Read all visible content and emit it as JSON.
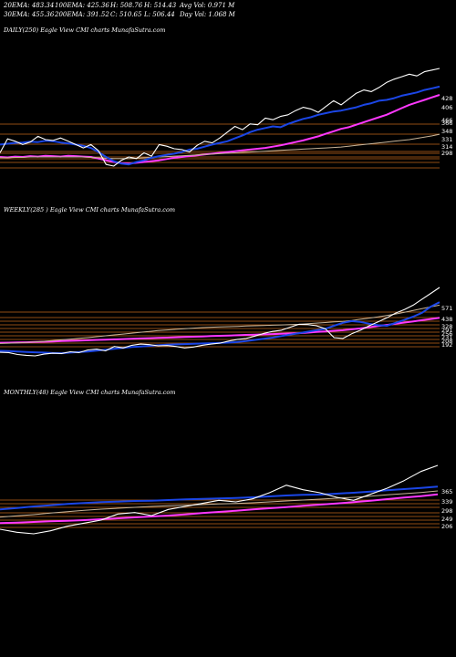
{
  "stats": {
    "ema20": "20EMA: 483.34",
    "ema100": "100EMA: 425.36",
    "high": "H: 508.76",
    "high_v": "H: 514.43",
    "avg_vol": "Avg Vol: 0.971 M",
    "ema30": "30EMA: 455.36",
    "ema200": "200EMA: 391.52",
    "close": "C: 510.65",
    "low": "L: 506.44",
    "day_vol": "Day Vol: 1.068 M"
  },
  "colors": {
    "price": "#ffffff",
    "ema_fast": "#1b46e6",
    "ema_slow": "#ff38ff",
    "ema_mid1": "#c8b59a",
    "ema_mid2": "#d08a3b",
    "hline": "#c2671c"
  },
  "chart_data": [
    {
      "type": "line",
      "title": "DAILY(250) Eagle View CMI charts MunafaSutra.com",
      "ylabels": [
        "466",
        "428",
        "406",
        "366",
        "348",
        "331",
        "314",
        "298"
      ],
      "series": [
        {
          "values": [
            300,
            299,
            301,
            300,
            302,
            301,
            303,
            302,
            301,
            303,
            302,
            301,
            300,
            296,
            292,
            288,
            285,
            284,
            286,
            288,
            290,
            292,
            295,
            298,
            300,
            302,
            304,
            306,
            308,
            310,
            312,
            314,
            316,
            318,
            320,
            322,
            325,
            328,
            332,
            336,
            340,
            345,
            350,
            356,
            362,
            368,
            372,
            378,
            384,
            390,
            396,
            402,
            410,
            418,
            426,
            432,
            438,
            444,
            450
          ]
        },
        {
          "values": [
            298,
            298,
            299,
            299,
            300,
            300,
            300,
            300,
            300,
            300,
            300,
            300,
            299,
            298,
            297,
            296,
            296,
            296,
            297,
            298,
            299,
            300,
            301,
            302,
            303,
            304,
            305,
            306,
            307,
            308,
            309,
            310,
            311,
            312,
            313,
            314,
            315,
            316,
            317,
            318,
            319,
            320,
            321,
            322,
            323,
            324,
            326,
            328,
            330,
            332,
            334,
            336,
            338,
            340,
            342,
            345,
            348,
            351,
            355
          ]
        },
        {
          "values": [
            330,
            332,
            334,
            335,
            337,
            336,
            339,
            338,
            335,
            333,
            330,
            327,
            322,
            312,
            300,
            290,
            284,
            282,
            288,
            292,
            298,
            302,
            305,
            308,
            312,
            318,
            320,
            325,
            330,
            334,
            338,
            345,
            352,
            360,
            366,
            370,
            374,
            372,
            380,
            386,
            392,
            396,
            402,
            406,
            410,
            412,
            416,
            420,
            426,
            430,
            436,
            438,
            442,
            448,
            452,
            456,
            462,
            466,
            470
          ]
        },
        {
          "values": [
            310,
            344,
            338,
            330,
            336,
            350,
            342,
            340,
            346,
            338,
            330,
            322,
            330,
            315,
            282,
            278,
            292,
            300,
            296,
            310,
            302,
            330,
            326,
            320,
            318,
            312,
            328,
            338,
            334,
            346,
            360,
            374,
            366,
            380,
            378,
            394,
            390,
            398,
            402,
            412,
            420,
            416,
            408,
            422,
            436,
            426,
            440,
            454,
            462,
            458,
            468,
            480,
            488,
            494,
            500,
            496,
            506,
            510,
            514
          ]
        }
      ]
    },
    {
      "type": "line",
      "title": "WEEKLY(285 ) Eagle View CMI charts MunafaSutra.com",
      "ylabels": [
        "571",
        "438",
        "328",
        "291",
        "256",
        "231",
        "208",
        "192"
      ],
      "series": [
        {
          "values": [
            185,
            186,
            187,
            188,
            190,
            192,
            194,
            196,
            198,
            200,
            202,
            204,
            206,
            208,
            210,
            212,
            214,
            216,
            218,
            220,
            222,
            224,
            226,
            228,
            230,
            232,
            234,
            236,
            238,
            240,
            242,
            244,
            246,
            248,
            250,
            254,
            258,
            262,
            266,
            270,
            276,
            282,
            290,
            298,
            306,
            314,
            322,
            330,
            338,
            346,
            354
          ]
        },
        {
          "values": [
            180,
            182,
            184,
            187,
            190,
            195,
            200,
            205,
            210,
            215,
            220,
            226,
            232,
            238,
            244,
            250,
            256,
            262,
            268,
            272,
            276,
            280,
            284,
            288,
            290,
            292,
            294,
            296,
            298,
            300,
            302,
            304,
            306,
            308,
            310,
            314,
            318,
            322,
            326,
            330,
            336,
            344,
            352,
            360,
            370,
            380,
            392,
            404,
            416,
            428,
            440
          ]
        },
        {
          "values": [
            130,
            128,
            125,
            122,
            120,
            118,
            115,
            114,
            118,
            122,
            126,
            132,
            138,
            144,
            150,
            156,
            160,
            164,
            168,
            172,
            174,
            176,
            178,
            180,
            182,
            184,
            186,
            190,
            196,
            204,
            212,
            220,
            230,
            240,
            250,
            260,
            270,
            280,
            300,
            320,
            332,
            326,
            314,
            304,
            300,
            320,
            340,
            362,
            388,
            430,
            460
          ]
        },
        {
          "values": [
            120,
            118,
            105,
            100,
            96,
            108,
            114,
            112,
            124,
            118,
            136,
            142,
            130,
            160,
            150,
            168,
            176,
            172,
            164,
            166,
            160,
            150,
            156,
            168,
            176,
            182,
            196,
            208,
            214,
            230,
            248,
            262,
            270,
            290,
            310,
            308,
            300,
            280,
            220,
            214,
            246,
            270,
            300,
            326,
            354,
            386,
            410,
            440,
            480,
            520,
            560
          ]
        }
      ]
    },
    {
      "type": "line",
      "title": "MONTHLY(48) Eagle View CMI charts MunafaSutra.com",
      "ylabels": [
        "365",
        "339",
        "298",
        "249",
        "206"
      ],
      "series": [
        {
          "values": [
            100,
            104,
            108,
            112,
            116,
            120,
            126,
            132,
            138,
            144,
            150,
            158,
            166,
            174,
            182,
            190,
            198,
            206,
            214,
            222,
            230,
            238,
            248,
            258,
            268,
            278,
            290
          ]
        },
        {
          "values": [
            140,
            148,
            156,
            166,
            176,
            184,
            192,
            198,
            204,
            210,
            214,
            218,
            222,
            226,
            230,
            234,
            240,
            246,
            252,
            258,
            264,
            270,
            278,
            286,
            294,
            302,
            312
          ]
        },
        {
          "values": [
            190,
            200,
            210,
            218,
            226,
            232,
            238,
            242,
            246,
            248,
            252,
            256,
            260,
            262,
            266,
            270,
            276,
            282,
            286,
            288,
            294,
            300,
            308,
            316,
            324,
            332,
            340
          ]
        },
        {
          "values": [
            60,
            40,
            30,
            50,
            80,
            100,
            120,
            160,
            170,
            150,
            190,
            210,
            230,
            250,
            240,
            260,
            300,
            350,
            320,
            300,
            270,
            250,
            290,
            330,
            380,
            440,
            480
          ]
        }
      ]
    }
  ]
}
